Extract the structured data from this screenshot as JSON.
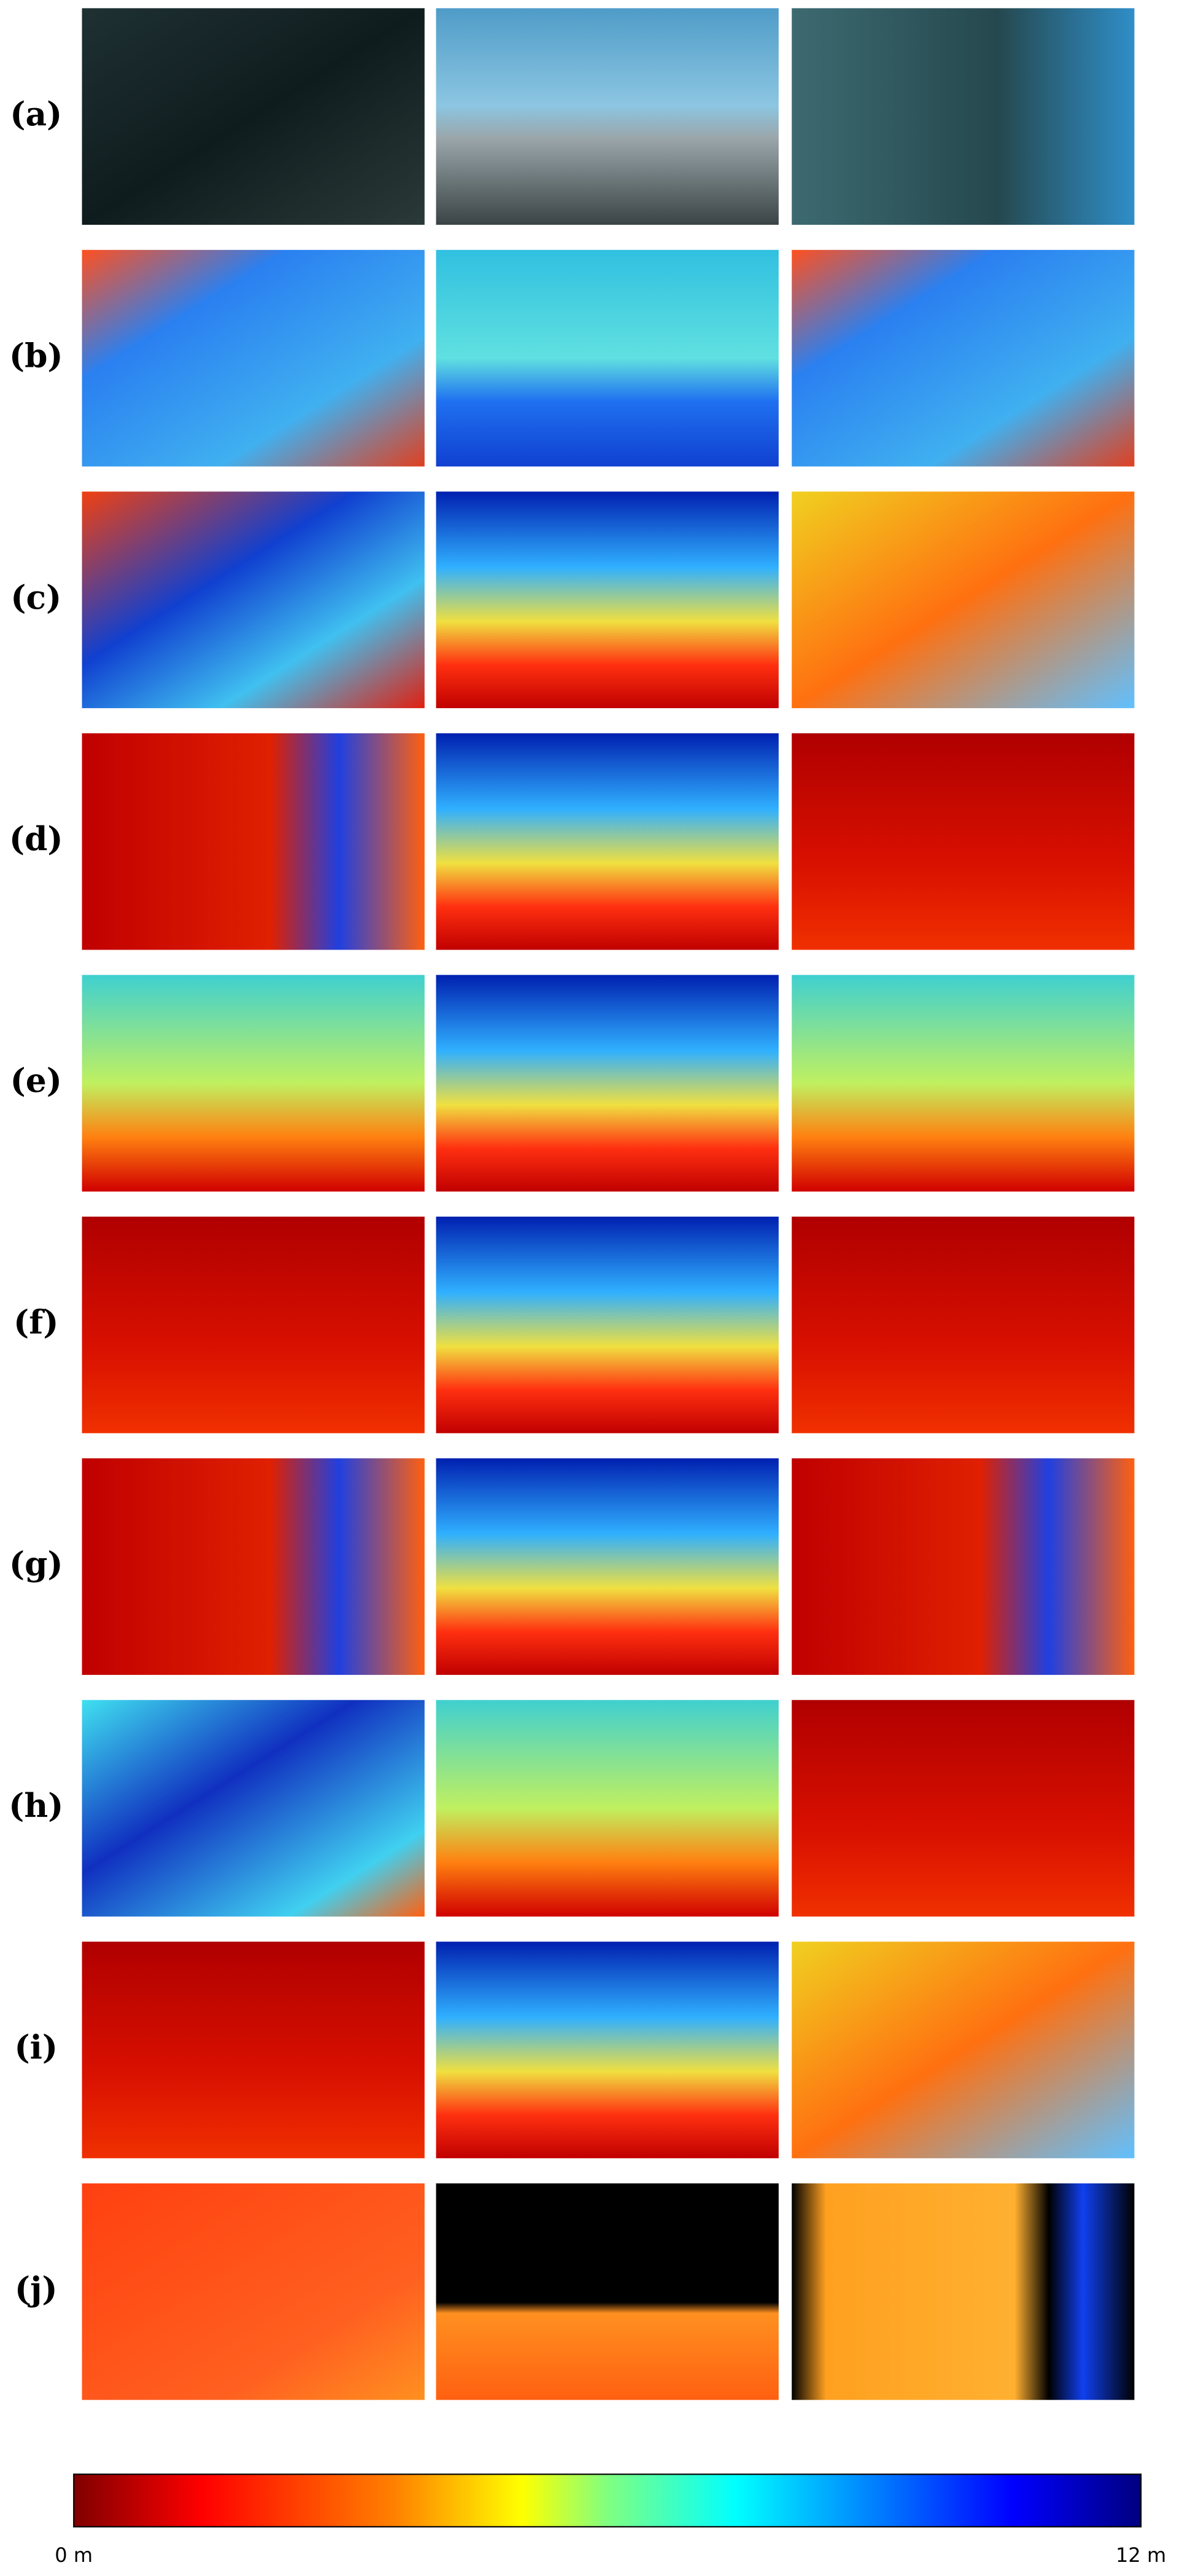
{
  "rows": [
    {
      "label": "(a)"
    },
    {
      "label": "(b)"
    },
    {
      "label": "(c)"
    },
    {
      "label": "(d)"
    },
    {
      "label": "(e)"
    },
    {
      "label": "(f)"
    },
    {
      "label": "(g)"
    },
    {
      "label": "(h)"
    },
    {
      "label": "(i)"
    },
    {
      "label": "(j)"
    }
  ],
  "colorbar": {
    "min_label": "0 m",
    "max_label": "12 m"
  }
}
